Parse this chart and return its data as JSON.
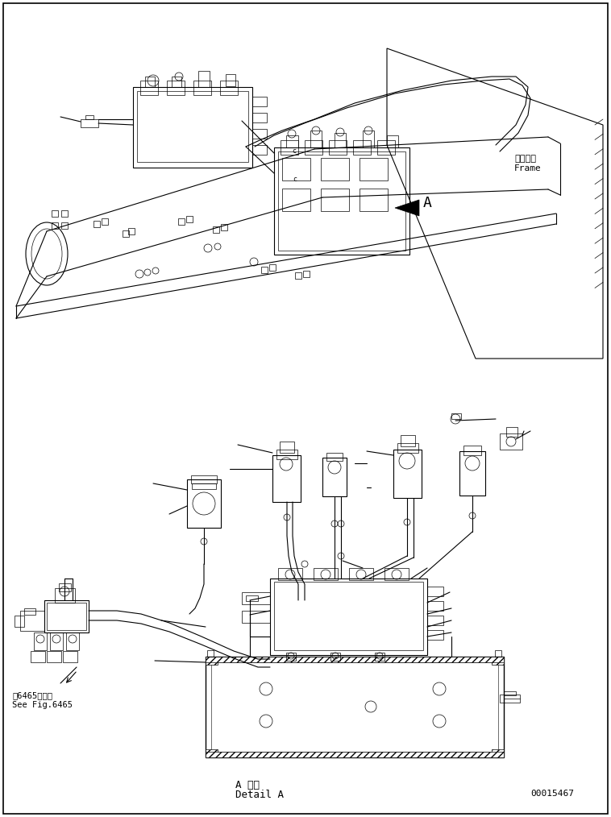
{
  "bg_color": "#ffffff",
  "line_color": "#000000",
  "lw": 0.8,
  "title_bottom_jp": "A 詳細",
  "title_bottom_en": "Detail A",
  "doc_number": "00015467",
  "label_frame_jp": "フレーム",
  "label_frame_en": "Frame",
  "label_see_jp": "第6465図参照",
  "label_see_en": "See Fig.6465",
  "label_A": "A",
  "figsize": [
    7.58,
    10.14
  ],
  "dpi": 100
}
